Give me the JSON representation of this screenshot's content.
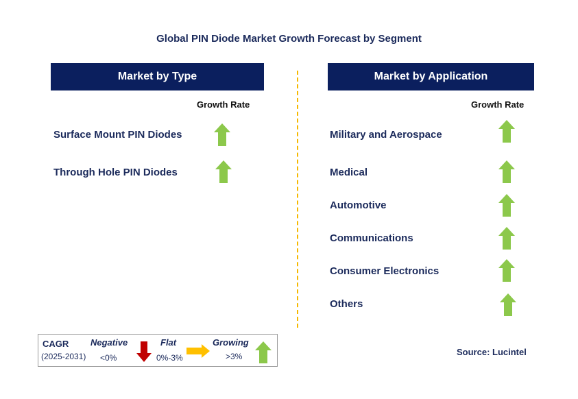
{
  "title": "Global PIN Diode Market Growth Forecast by Segment",
  "left": {
    "header": "Market by Type",
    "growth_label": "Growth Rate",
    "items": [
      {
        "label": "Surface Mount PIN Diodes",
        "trend": "growing"
      },
      {
        "label": "Through Hole PIN Diodes",
        "trend": "growing"
      }
    ]
  },
  "right": {
    "header": "Market by Application",
    "growth_label": "Growth Rate",
    "items": [
      {
        "label": "Military and Aerospace",
        "trend": "growing"
      },
      {
        "label": "Medical",
        "trend": "growing"
      },
      {
        "label": "Automotive",
        "trend": "growing"
      },
      {
        "label": "Communications",
        "trend": "growing"
      },
      {
        "label": "Consumer Electronics",
        "trend": "growing"
      },
      {
        "label": "Others",
        "trend": "growing"
      }
    ]
  },
  "legend": {
    "cagr": "CAGR",
    "period": "(2025-2031)",
    "negative": "Negative",
    "negative_range": "<0%",
    "flat": "Flat",
    "flat_range": "0%-3%",
    "growing": "Growing",
    "growing_range": ">3%"
  },
  "source": "Source: Lucintel",
  "colors": {
    "header": "#0b1f5e",
    "growing": "#8cc84b",
    "negative": "#c00000",
    "flat": "#ffc000",
    "divider": "#f5b800"
  }
}
